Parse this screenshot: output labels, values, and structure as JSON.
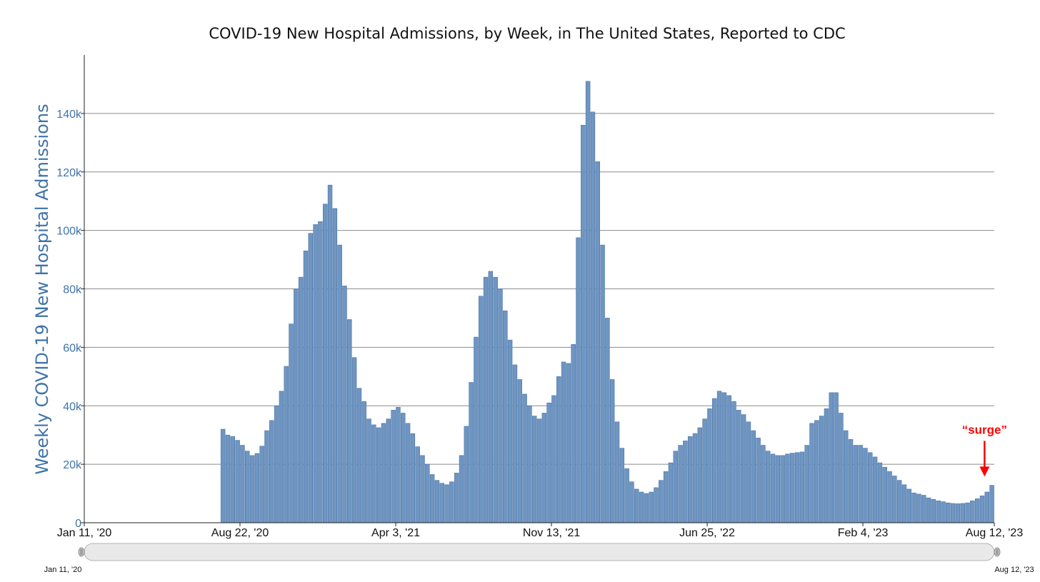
{
  "chart_data": {
    "type": "bar",
    "title": "COVID-19 New Hospital Admissions, by Week, in The United States, Reported to CDC",
    "ylabel": "Weekly COVID-19 New Hospital Admissions",
    "xlabel": "",
    "x_axis_type": "weekly dates",
    "x_range": [
      "Jan 11, '20",
      "Aug 12, '23"
    ],
    "ylim": [
      0,
      160000
    ],
    "grid": true,
    "yticks": [
      {
        "value": 0,
        "label": "0"
      },
      {
        "value": 20000,
        "label": "20k"
      },
      {
        "value": 40000,
        "label": "40k"
      },
      {
        "value": 60000,
        "label": "60k"
      },
      {
        "value": 80000,
        "label": "80k"
      },
      {
        "value": 100000,
        "label": "100k"
      },
      {
        "value": 120000,
        "label": "120k"
      },
      {
        "value": 140000,
        "label": "140k"
      }
    ],
    "xticks": [
      "Jan 11, '20",
      "Aug 22, '20",
      "Apr 3, '21",
      "Nov 13, '21",
      "Jun 25, '22",
      "Feb 4, '23",
      "Aug 12, '23"
    ],
    "first_week": "Aug 1, '20",
    "last_week": "Aug 12, '23",
    "values": [
      32000,
      30000,
      29500,
      28200,
      26500,
      24500,
      23000,
      23700,
      26200,
      31500,
      35000,
      40000,
      45000,
      53500,
      68000,
      80000,
      84000,
      93000,
      99000,
      102000,
      103000,
      109000,
      115500,
      107500,
      95000,
      81000,
      69500,
      56500,
      46000,
      41500,
      35500,
      33500,
      32500,
      34000,
      35500,
      38500,
      39500,
      37500,
      34000,
      30500,
      26000,
      23000,
      20000,
      16500,
      14500,
      13500,
      13000,
      14000,
      17000,
      23000,
      33000,
      48000,
      63500,
      77500,
      84000,
      86000,
      84000,
      80000,
      72500,
      62500,
      54000,
      49000,
      44000,
      40000,
      36500,
      35500,
      37500,
      41000,
      43500,
      50000,
      55000,
      54500,
      61000,
      97500,
      136000,
      151000,
      140500,
      123500,
      95000,
      70000,
      49000,
      34500,
      25500,
      18500,
      14000,
      11500,
      10500,
      10000,
      10500,
      12000,
      14500,
      17500,
      20500,
      24500,
      26500,
      28000,
      29500,
      30500,
      32500,
      35500,
      39000,
      42500,
      45000,
      44500,
      43500,
      41500,
      38500,
      37000,
      34500,
      31500,
      29000,
      26500,
      24500,
      23500,
      23000,
      23000,
      23500,
      23800,
      24000,
      24200,
      26500,
      34000,
      35000,
      36500,
      39000,
      44500,
      44500,
      37500,
      31500,
      28500,
      26500,
      26500,
      25500,
      24000,
      22500,
      20500,
      19000,
      17500,
      16000,
      14500,
      13000,
      11500,
      10200,
      9800,
      9400,
      8500,
      8000,
      7500,
      7200,
      6800,
      6600,
      6500,
      6600,
      6800,
      7500,
      8200,
      9200,
      10500,
      12800
    ],
    "annotations": [
      {
        "text": "“surge”",
        "color": "#ff0000",
        "points_to_week": "Jul 29, '23",
        "arrow_from": 28000,
        "arrow_to": 15800
      }
    ],
    "colors": {
      "bar_fill": "#6f95c1",
      "bar_stroke": "#4a74a8",
      "grid": "#8c8c8c",
      "axis_label": "#3f73a8",
      "annotation": "#ff0000",
      "navigator_fill": "#e9e9e9",
      "navigator_stroke": "#b4b4b4"
    }
  },
  "navigator": {
    "start_label": "Jan 11, '20",
    "end_label": "Aug 12, '23"
  }
}
